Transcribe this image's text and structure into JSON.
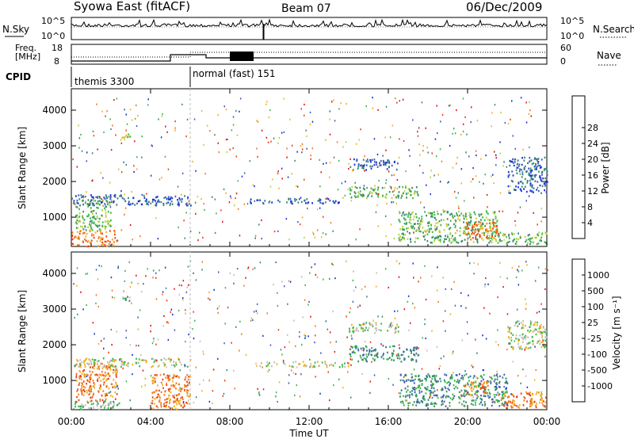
{
  "header": {
    "station": "Syowa East (fitACF)",
    "beam": "Beam 07",
    "date": "06/Dec/2009"
  },
  "top_panels": {
    "nsky_label": "N.Sky",
    "nsearch_label": "N.Search",
    "noise_ticks_left": [
      "10^5",
      "10^0"
    ],
    "noise_ticks_right": [
      "10^5",
      "10^0"
    ],
    "freq_label_1": "Freq.",
    "freq_label_2": "[MHz]",
    "freq_ticks": [
      "18",
      "8"
    ],
    "nave_label": "Nave",
    "nave_ticks": [
      "60",
      "0"
    ],
    "cpid_label": "CPID",
    "cpid_segments": [
      {
        "label": "themis 3300",
        "start_hour": 0.0,
        "end_hour": 6.0
      },
      {
        "label": "normal (fast) 151",
        "start_hour": 6.0,
        "end_hour": 24.0
      }
    ]
  },
  "chart_data": [
    {
      "type": "heatmap",
      "name": "power",
      "ylabel": "Slant Range [km]",
      "xlabel": "",
      "xlim_hours": [
        0,
        24
      ],
      "ylim": [
        180,
        4600
      ],
      "yticks": [
        "1000",
        "2000",
        "3000",
        "4000"
      ],
      "colorbar_label": "Power [dB]",
      "colorbar_ticks": [
        "4",
        "8",
        "12",
        "16",
        "20",
        "24",
        "28"
      ],
      "colorbar_colors": [
        "#1434d6",
        "#3d5fb5",
        "#3a8a6a",
        "#3cb84a",
        "#b8d23c",
        "#f0b020",
        "#f07820",
        "#f03c10",
        "#e81010"
      ],
      "echo_regions": [
        {
          "x0": 0.0,
          "x1": 2.3,
          "y0": 200,
          "y1": 650,
          "level": 6
        },
        {
          "x0": 0.2,
          "x1": 2.0,
          "y0": 650,
          "y1": 1500,
          "level": 3
        },
        {
          "x0": 0.0,
          "x1": 6.0,
          "y0": 1350,
          "y1": 1650,
          "level": 1
        },
        {
          "x0": 2.5,
          "x1": 3.0,
          "y0": 3250,
          "y1": 3450,
          "level": 4
        },
        {
          "x0": 9.0,
          "x1": 13.5,
          "y0": 1400,
          "y1": 1550,
          "level": 1
        },
        {
          "x0": 14.0,
          "x1": 17.5,
          "y0": 1550,
          "y1": 1900,
          "level": 3
        },
        {
          "x0": 14.0,
          "x1": 16.5,
          "y0": 2350,
          "y1": 2650,
          "level": 1
        },
        {
          "x0": 16.5,
          "x1": 21.5,
          "y0": 300,
          "y1": 1200,
          "level": 3
        },
        {
          "x0": 19.8,
          "x1": 21.5,
          "y0": 400,
          "y1": 900,
          "level": 6
        },
        {
          "x0": 21.5,
          "x1": 24.0,
          "y0": 250,
          "y1": 600,
          "level": 3
        },
        {
          "x0": 22.0,
          "x1": 24.0,
          "y0": 1700,
          "y1": 2700,
          "level": 1
        }
      ]
    },
    {
      "type": "heatmap",
      "name": "velocity",
      "ylabel": "Slant Range [km]",
      "xlabel": "Time UT",
      "xlim_hours": [
        0,
        24
      ],
      "ylim": [
        180,
        4600
      ],
      "yticks": [
        "1000",
        "2000",
        "3000",
        "4000"
      ],
      "xticks": [
        "00:00",
        "04:00",
        "08:00",
        "12:00",
        "16:00",
        "20:00",
        "00:00"
      ],
      "colorbar_label": "Velocity [m s⁻¹]",
      "colorbar_ticks": [
        "1000",
        "500",
        "100",
        "25",
        "-25",
        "-100",
        "-500",
        "-1000"
      ],
      "colorbar_colors": [
        "#1434d6",
        "#3d5fb5",
        "#3a8a6a",
        "#3cb84a",
        "#bebebe",
        "#f0b020",
        "#f07820",
        "#f03c10",
        "#e81010"
      ],
      "echo_regions": [
        {
          "x0": 0.2,
          "x1": 2.3,
          "y0": 400,
          "y1": 1500,
          "level": 6
        },
        {
          "x0": 0.0,
          "x1": 2.5,
          "y0": 200,
          "y1": 450,
          "level": 3
        },
        {
          "x0": 0.0,
          "x1": 6.0,
          "y0": 1400,
          "y1": 1650,
          "level": 4
        },
        {
          "x0": 4.0,
          "x1": 6.0,
          "y0": 200,
          "y1": 1200,
          "level": 6
        },
        {
          "x0": 2.5,
          "x1": 3.0,
          "y0": 3250,
          "y1": 3450,
          "level": 3
        },
        {
          "x0": 9.5,
          "x1": 14.0,
          "y0": 1400,
          "y1": 1550,
          "level": 4
        },
        {
          "x0": 14.0,
          "x1": 17.5,
          "y0": 1550,
          "y1": 2000,
          "level": 2
        },
        {
          "x0": 14.0,
          "x1": 16.5,
          "y0": 2350,
          "y1": 2650,
          "level": 4
        },
        {
          "x0": 16.5,
          "x1": 22.0,
          "y0": 300,
          "y1": 1200,
          "level": 2
        },
        {
          "x0": 19.8,
          "x1": 21.0,
          "y0": 600,
          "y1": 1000,
          "level": 6
        },
        {
          "x0": 21.5,
          "x1": 24.0,
          "y0": 250,
          "y1": 700,
          "level": 6
        },
        {
          "x0": 22.0,
          "x1": 24.0,
          "y0": 1900,
          "y1": 2700,
          "level": 4
        }
      ]
    }
  ]
}
